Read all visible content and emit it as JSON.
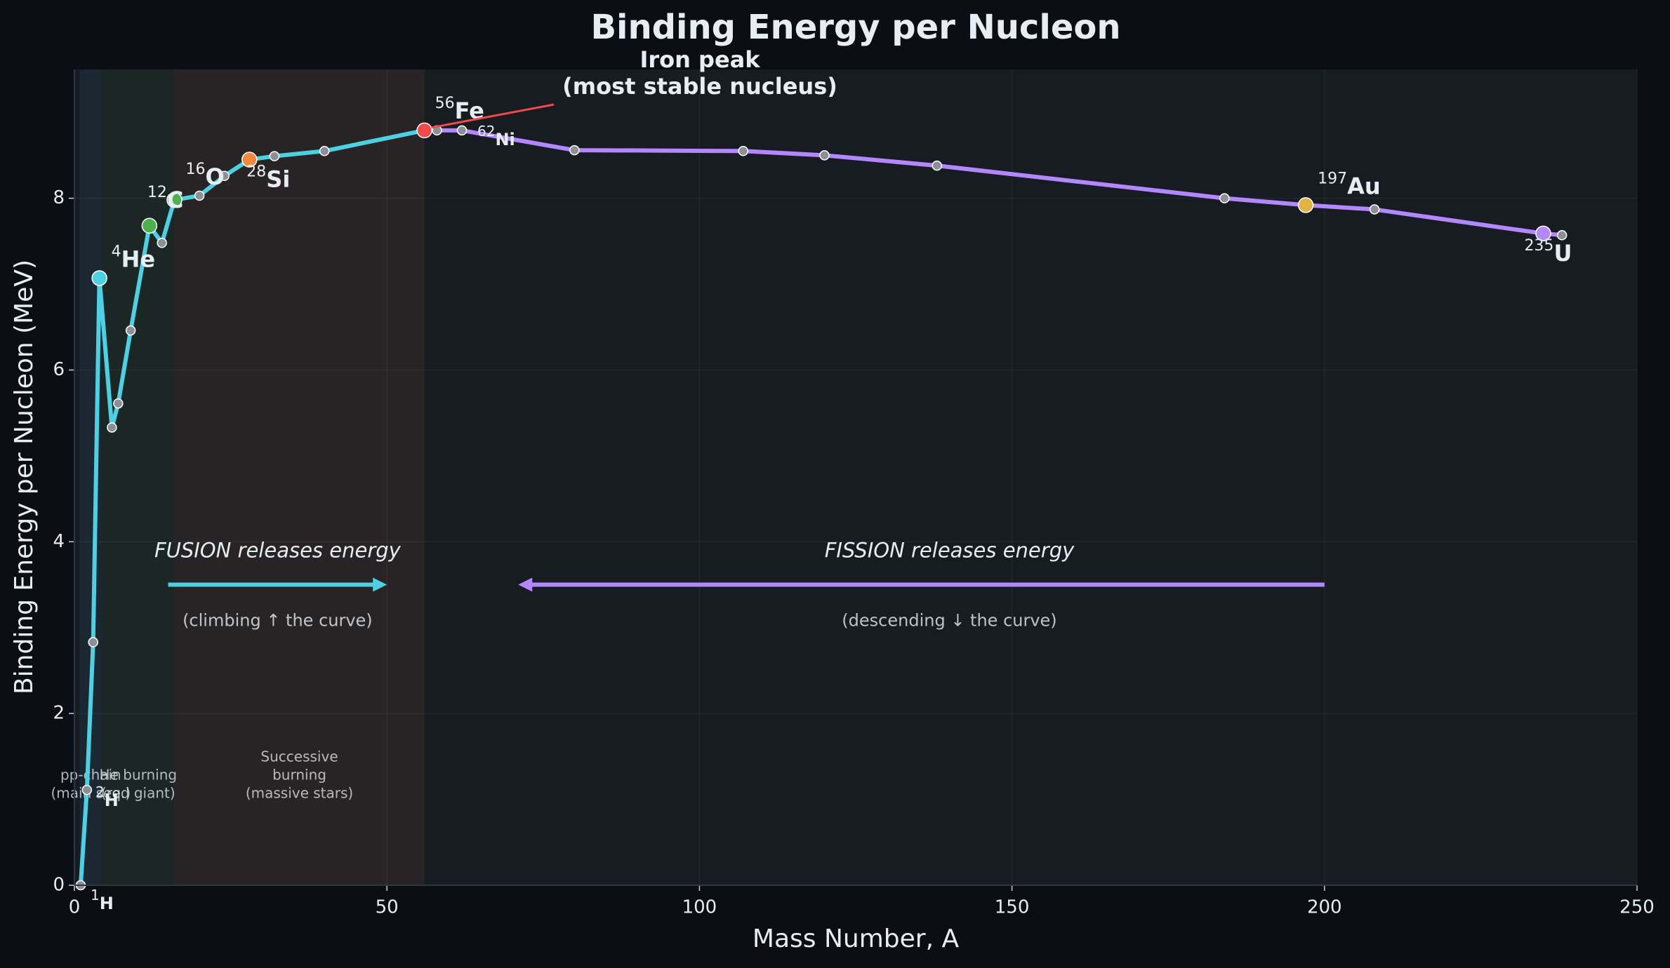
{
  "chart_data": {
    "type": "line",
    "title": "Binding Energy per Nucleon",
    "x_label": "Mass Number, A",
    "y_label": "Binding Energy per Nucleon (MeV)",
    "xlim": [
      0,
      250
    ],
    "ylim": [
      0,
      9.5
    ],
    "xticks": [
      0,
      50,
      100,
      150,
      200,
      250
    ],
    "yticks": [
      0,
      2,
      4,
      6,
      8
    ],
    "grid": true,
    "series": [
      {
        "color": "#4dd0e1",
        "x": [
          1,
          2,
          3,
          4,
          6,
          7,
          9,
          12,
          14,
          16,
          20,
          24,
          28,
          32,
          40,
          56
        ],
        "values": [
          0,
          1.11,
          2.83,
          7.07,
          5.33,
          5.61,
          6.46,
          7.68,
          7.48,
          7.98,
          8.03,
          8.26,
          8.45,
          8.49,
          8.55,
          8.79
        ]
      },
      {
        "color": "#b388ff",
        "x": [
          56,
          58,
          62,
          80,
          107,
          120,
          138,
          184,
          197,
          208,
          235,
          238
        ],
        "values": [
          8.79,
          8.79,
          8.79,
          8.56,
          8.55,
          8.5,
          8.38,
          8.0,
          7.92,
          7.87,
          7.59,
          7.57
        ]
      }
    ],
    "highlights": [
      {
        "mass": 4,
        "symbol": "He",
        "x": 4,
        "value": 7.07,
        "color": "#4dd0e1"
      },
      {
        "mass": 12,
        "symbol": "C",
        "x": 12,
        "value": 7.68,
        "color": "#4caf50"
      },
      {
        "mass": 16,
        "symbol": "O",
        "x": 16,
        "value": 7.98,
        "color": "#4caf50"
      },
      {
        "mass": 28,
        "symbol": "Si",
        "x": 28,
        "value": 8.45,
        "color": "#f0883e"
      },
      {
        "mass": 56,
        "symbol": "Fe",
        "x": 56,
        "value": 8.79,
        "color": "#f04a4a"
      },
      {
        "mass": 197,
        "symbol": "Au",
        "x": 197,
        "value": 7.92,
        "color": "#e3b341"
      },
      {
        "mass": 235,
        "symbol": "U",
        "x": 235,
        "value": 7.59,
        "color": "#b388ff"
      }
    ],
    "minor_labels": [
      {
        "mass": 62,
        "symbol": "Ni"
      },
      {
        "mass": 2,
        "symbol": "H"
      },
      {
        "mass": 1,
        "symbol": "H"
      }
    ],
    "regions": [
      {
        "start": 0.85,
        "end": 4.4,
        "color": "#4dd0e1",
        "lines": [
          "pp-chain",
          "(main seq.)"
        ]
      },
      {
        "start": 4.4,
        "end": 16,
        "color": "#4caf50",
        "lines": [
          "He burning",
          "(red giant)"
        ]
      },
      {
        "start": 16,
        "end": 56,
        "color": "#f0883e",
        "lines": [
          "Successive",
          "burning",
          "(massive stars)"
        ]
      }
    ],
    "arrows": [
      {
        "label": "FUSION releases energy",
        "note": "(climbing  ↑  the curve)",
        "from": 15,
        "to": 50,
        "y": 3.5,
        "color": "#4dd0e1"
      },
      {
        "label": "FISSION releases energy",
        "note": "(descending  ↓  the curve)",
        "from": 200,
        "to": 71,
        "y": 3.5,
        "color": "#b388ff"
      }
    ],
    "iron_peak": {
      "lines": [
        "Iron peak",
        "(most stable nucleus)"
      ],
      "color": "#f04a4a"
    }
  }
}
